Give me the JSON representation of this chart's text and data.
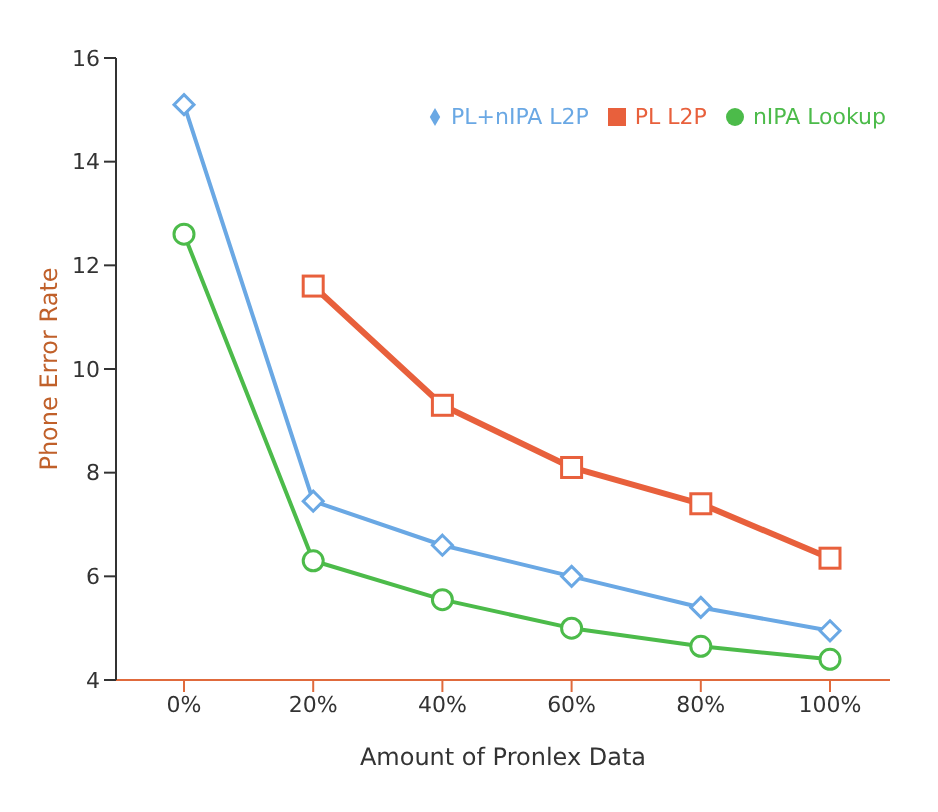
{
  "chart_data": {
    "type": "line",
    "xlabel": "Amount of Pronlex Data",
    "ylabel": "Phone Error Rate",
    "categories": [
      "0%",
      "20%",
      "40%",
      "60%",
      "80%",
      "100%"
    ],
    "series": [
      {
        "name": "PL+nIPA L2P",
        "color": "#6aa8e4",
        "marker": "diamond",
        "values": [
          15.1,
          7.45,
          6.6,
          6.0,
          5.4,
          4.95
        ]
      },
      {
        "name": "PL L2P",
        "color": "#e8603c",
        "marker": "square",
        "values": [
          null,
          11.6,
          9.3,
          8.1,
          7.4,
          6.35
        ]
      },
      {
        "name": "nIPA Lookup",
        "color": "#4cbb4a",
        "marker": "circle",
        "values": [
          12.6,
          6.3,
          5.55,
          5.0,
          4.65,
          4.4
        ]
      }
    ],
    "ylim": [
      4,
      16
    ],
    "yticks": [
      4,
      6,
      8,
      10,
      12,
      14,
      16
    ],
    "grid": false,
    "legend": "top right",
    "line_style": "solid"
  }
}
